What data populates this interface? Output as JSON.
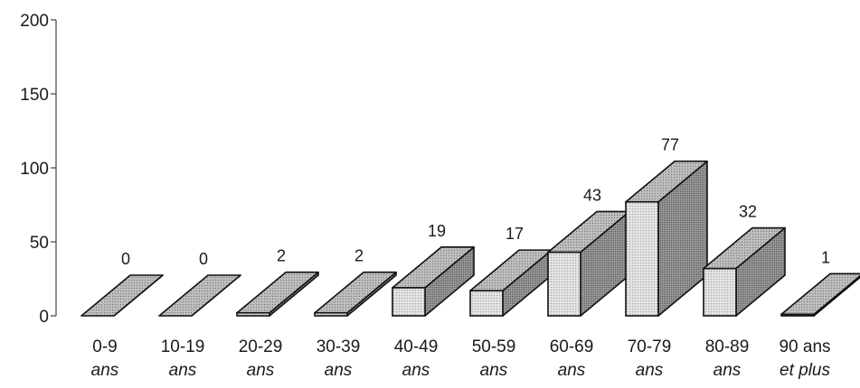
{
  "chart_data": {
    "type": "bar",
    "categories": [
      [
        "0-9",
        "ans"
      ],
      [
        "10-19",
        "ans"
      ],
      [
        "20-29",
        "ans"
      ],
      [
        "30-39",
        "ans"
      ],
      [
        "40-49",
        "ans"
      ],
      [
        "50-59",
        "ans"
      ],
      [
        "60-69",
        "ans"
      ],
      [
        "70-79",
        "ans"
      ],
      [
        "80-89",
        "ans"
      ],
      [
        "90 ans",
        "et plus"
      ]
    ],
    "values": [
      0,
      0,
      2,
      2,
      19,
      17,
      43,
      77,
      32,
      1
    ],
    "data_labels": [
      "0",
      "0",
      "2",
      "2",
      "19",
      "17",
      "43",
      "77",
      "32",
      "1"
    ],
    "yticks": [
      "0",
      "50",
      "100",
      "150",
      "200"
    ],
    "ylim": [
      0,
      200
    ],
    "title": "",
    "xlabel": "",
    "ylabel": "",
    "grid": false,
    "legend": "none",
    "colors": {
      "front": "#dcdcdc",
      "top": "#b4b4b4",
      "side": "#8e8e8e",
      "stroke": "#111111"
    }
  }
}
